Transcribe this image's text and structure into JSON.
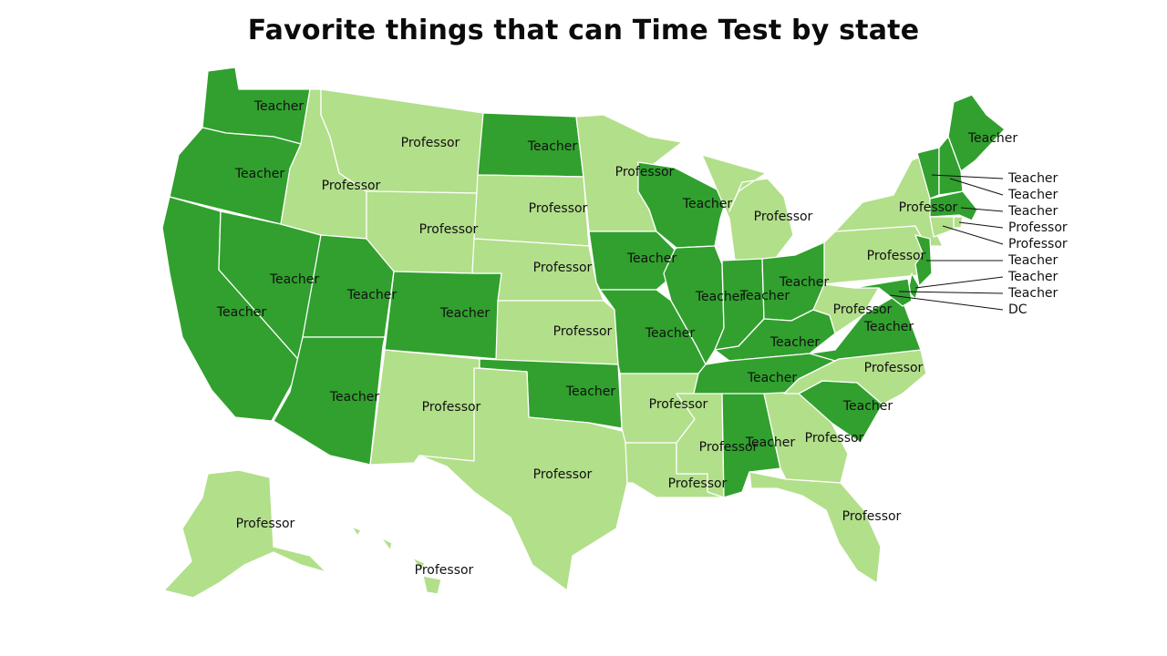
{
  "title": "Favorite things that can Time Test by state",
  "colors": {
    "Teacher": "#31a02e",
    "Professor": "#b2df8a",
    "outline": "#ffffff"
  },
  "states": [
    {
      "code": "WA",
      "label": "Teacher"
    },
    {
      "code": "OR",
      "label": "Teacher"
    },
    {
      "code": "CA",
      "label": "Teacher"
    },
    {
      "code": "NV",
      "label": "Teacher"
    },
    {
      "code": "ID",
      "label": "Professor"
    },
    {
      "code": "MT",
      "label": "Professor"
    },
    {
      "code": "WY",
      "label": "Professor"
    },
    {
      "code": "UT",
      "label": "Teacher"
    },
    {
      "code": "AZ",
      "label": "Teacher"
    },
    {
      "code": "CO",
      "label": "Teacher"
    },
    {
      "code": "NM",
      "label": "Professor"
    },
    {
      "code": "ND",
      "label": "Teacher"
    },
    {
      "code": "SD",
      "label": "Professor"
    },
    {
      "code": "NE",
      "label": "Professor"
    },
    {
      "code": "KS",
      "label": "Professor"
    },
    {
      "code": "OK",
      "label": "Teacher"
    },
    {
      "code": "TX",
      "label": "Professor"
    },
    {
      "code": "MN",
      "label": "Professor"
    },
    {
      "code": "IA",
      "label": "Teacher"
    },
    {
      "code": "MO",
      "label": "Teacher"
    },
    {
      "code": "AR",
      "label": "Professor"
    },
    {
      "code": "LA",
      "label": "Professor"
    },
    {
      "code": "WI",
      "label": "Teacher"
    },
    {
      "code": "IL",
      "label": "Teacher"
    },
    {
      "code": "MI",
      "label": "Professor"
    },
    {
      "code": "IN",
      "label": "Teacher"
    },
    {
      "code": "OH",
      "label": "Teacher"
    },
    {
      "code": "KY",
      "label": "Teacher"
    },
    {
      "code": "TN",
      "label": "Teacher"
    },
    {
      "code": "MS",
      "label": "Professor"
    },
    {
      "code": "AL",
      "label": "Teacher"
    },
    {
      "code": "GA",
      "label": "Professor"
    },
    {
      "code": "FL",
      "label": "Professor"
    },
    {
      "code": "SC",
      "label": "Teacher"
    },
    {
      "code": "NC",
      "label": "Professor"
    },
    {
      "code": "VA",
      "label": "Teacher"
    },
    {
      "code": "WV",
      "label": "Professor"
    },
    {
      "code": "PA",
      "label": "Professor"
    },
    {
      "code": "NY",
      "label": "Professor"
    },
    {
      "code": "ME",
      "label": "Teacher"
    },
    {
      "code": "AK",
      "label": "Professor"
    },
    {
      "code": "HI",
      "label": "Professor"
    }
  ],
  "callouts": [
    {
      "code": "VT",
      "label": "Teacher"
    },
    {
      "code": "NH",
      "label": "Teacher"
    },
    {
      "code": "MA",
      "label": "Teacher"
    },
    {
      "code": "RI",
      "label": "Professor"
    },
    {
      "code": "CT",
      "label": "Professor"
    },
    {
      "code": "NJ",
      "label": "Teacher"
    },
    {
      "code": "DE",
      "label": "Teacher"
    },
    {
      "code": "MD",
      "label": "Teacher"
    },
    {
      "code": "DC",
      "label": "DC"
    }
  ]
}
